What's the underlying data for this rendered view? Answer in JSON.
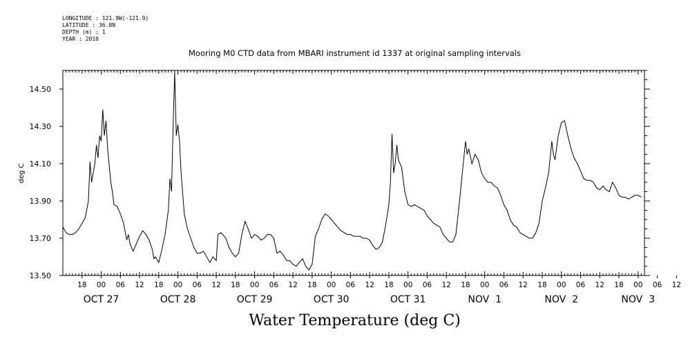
{
  "meta": {
    "longitude": "LONGITUDE : 121.9W(-121.9)",
    "latitude": "LATITUDE : 36.8N",
    "depth": "DEPTH (m) : 1",
    "year": "YEAR : 2010"
  },
  "chart_data": {
    "type": "line",
    "title": "Mooring M0 CTD data from MBARI instrument id 1337 at original sampling intervals",
    "xlabel": "Water Temperature (deg C)",
    "ylabel": "deg C",
    "ylim": [
      13.5,
      14.6
    ],
    "xlim_hours_note": "",
    "y_ticks": [
      "13.50",
      "13.70",
      "13.90",
      "14.10",
      "14.30",
      "14.50"
    ],
    "y_tick_values": [
      13.5,
      13.7,
      13.9,
      14.1,
      14.3,
      14.5
    ],
    "hour_ticks": [
      {
        "t": "2010-10-26 18:00",
        "label": "18"
      },
      {
        "t": "2010-10-27 00:00",
        "label": "00"
      },
      {
        "t": "2010-10-27 06:00",
        "label": "06"
      },
      {
        "t": "2010-10-27 12:00",
        "label": "12"
      },
      {
        "t": "2010-10-27 18:00",
        "label": "18"
      },
      {
        "t": "2010-10-28 00:00",
        "label": "00"
      },
      {
        "t": "2010-10-28 06:00",
        "label": "06"
      },
      {
        "t": "2010-10-28 12:00",
        "label": "12"
      },
      {
        "t": "2010-10-28 18:00",
        "label": "18"
      },
      {
        "t": "2010-10-29 00:00",
        "label": "00"
      },
      {
        "t": "2010-10-29 06:00",
        "label": "06"
      },
      {
        "t": "2010-10-29 12:00",
        "label": "12"
      },
      {
        "t": "2010-10-29 18:00",
        "label": "18"
      },
      {
        "t": "2010-10-30 00:00",
        "label": "00"
      },
      {
        "t": "2010-10-30 06:00",
        "label": "06"
      },
      {
        "t": "2010-10-30 12:00",
        "label": "12"
      },
      {
        "t": "2010-10-30 18:00",
        "label": "18"
      },
      {
        "t": "2010-10-31 00:00",
        "label": "00"
      },
      {
        "t": "2010-10-31 06:00",
        "label": "06"
      },
      {
        "t": "2010-10-31 12:00",
        "label": "12"
      },
      {
        "t": "2010-10-31 18:00",
        "label": "18"
      },
      {
        "t": "2010-11-01 00:00",
        "label": "00"
      },
      {
        "t": "2010-11-01 06:00",
        "label": "06"
      },
      {
        "t": "2010-11-01 12:00",
        "label": "12"
      },
      {
        "t": "2010-11-01 18:00",
        "label": "18"
      },
      {
        "t": "2010-11-02 00:00",
        "label": "00"
      },
      {
        "t": "2010-11-02 06:00",
        "label": "06"
      },
      {
        "t": "2010-11-02 12:00",
        "label": "12"
      },
      {
        "t": "2010-11-02 18:00",
        "label": "18"
      },
      {
        "t": "2010-11-03 00:00",
        "label": "00"
      },
      {
        "t": "2010-11-03 06:00",
        "label": "06"
      },
      {
        "t": "2010-11-03 12:00",
        "label": "12"
      }
    ],
    "day_labels": [
      {
        "t": "2010-10-27 00:00",
        "label": "OCT 27"
      },
      {
        "t": "2010-10-28 00:00",
        "label": "OCT 28"
      },
      {
        "t": "2010-10-29 00:00",
        "label": "OCT 29"
      },
      {
        "t": "2010-10-30 00:00",
        "label": "OCT 30"
      },
      {
        "t": "2010-10-31 00:00",
        "label": "OCT 31"
      },
      {
        "t": "2010-11-01 00:00",
        "label": "NOV  1"
      },
      {
        "t": "2010-11-02 00:00",
        "label": "NOV  2"
      },
      {
        "t": "2010-11-03 00:00",
        "label": "NOV  3"
      }
    ],
    "series": [
      {
        "points": [
          [
            "2010-10-26 12:00",
            13.76
          ],
          [
            "2010-10-26 13:00",
            13.73
          ],
          [
            "2010-10-26 14:00",
            13.72
          ],
          [
            "2010-10-26 15:00",
            13.72
          ],
          [
            "2010-10-26 16:00",
            13.73
          ],
          [
            "2010-10-26 17:00",
            13.75
          ],
          [
            "2010-10-26 18:00",
            13.78
          ],
          [
            "2010-10-26 19:00",
            13.81
          ],
          [
            "2010-10-26 20:00",
            13.9
          ],
          [
            "2010-10-26 20:30",
            14.11
          ],
          [
            "2010-10-26 21:00",
            14.0
          ],
          [
            "2010-10-26 22:00",
            14.1
          ],
          [
            "2010-10-26 22:30",
            14.2
          ],
          [
            "2010-10-26 23:00",
            14.13
          ],
          [
            "2010-10-26 23:30",
            14.25
          ],
          [
            "2010-10-27 00:00",
            14.22
          ],
          [
            "2010-10-27 00:30",
            14.39
          ],
          [
            "2010-10-27 01:00",
            14.25
          ],
          [
            "2010-10-27 01:30",
            14.33
          ],
          [
            "2010-10-27 02:00",
            14.18
          ],
          [
            "2010-10-27 03:00",
            14.0
          ],
          [
            "2010-10-27 03:30",
            13.95
          ],
          [
            "2010-10-27 04:00",
            13.88
          ],
          [
            "2010-10-27 05:00",
            13.87
          ],
          [
            "2010-10-27 06:00",
            13.83
          ],
          [
            "2010-10-27 07:00",
            13.78
          ],
          [
            "2010-10-27 08:00",
            13.69
          ],
          [
            "2010-10-27 08:30",
            13.72
          ],
          [
            "2010-10-27 09:00",
            13.67
          ],
          [
            "2010-10-27 10:00",
            13.63
          ],
          [
            "2010-10-27 11:00",
            13.67
          ],
          [
            "2010-10-27 12:00",
            13.71
          ],
          [
            "2010-10-27 13:00",
            13.74
          ],
          [
            "2010-10-27 14:00",
            13.72
          ],
          [
            "2010-10-27 15:00",
            13.69
          ],
          [
            "2010-10-27 16:00",
            13.64
          ],
          [
            "2010-10-27 16:30",
            13.59
          ],
          [
            "2010-10-27 17:00",
            13.6
          ],
          [
            "2010-10-27 18:00",
            13.57
          ],
          [
            "2010-10-27 19:00",
            13.64
          ],
          [
            "2010-10-27 20:00",
            13.72
          ],
          [
            "2010-10-27 21:00",
            13.85
          ],
          [
            "2010-10-27 21:30",
            14.02
          ],
          [
            "2010-10-27 22:00",
            13.95
          ],
          [
            "2010-10-27 22:30",
            14.3
          ],
          [
            "2010-10-27 23:00",
            14.59
          ],
          [
            "2010-10-27 23:30",
            14.25
          ],
          [
            "2010-10-28 00:00",
            14.31
          ],
          [
            "2010-10-28 00:30",
            14.22
          ],
          [
            "2010-10-28 01:00",
            14.05
          ],
          [
            "2010-10-28 02:00",
            13.83
          ],
          [
            "2010-10-28 03:00",
            13.75
          ],
          [
            "2010-10-28 04:00",
            13.7
          ],
          [
            "2010-10-28 05:00",
            13.65
          ],
          [
            "2010-10-28 06:00",
            13.62
          ],
          [
            "2010-10-28 07:00",
            13.62
          ],
          [
            "2010-10-28 08:00",
            13.63
          ],
          [
            "2010-10-28 09:00",
            13.6
          ],
          [
            "2010-10-28 10:00",
            13.57
          ],
          [
            "2010-10-28 11:00",
            13.6
          ],
          [
            "2010-10-28 12:00",
            13.58
          ],
          [
            "2010-10-28 12:30",
            13.72
          ],
          [
            "2010-10-28 13:30",
            13.73
          ],
          [
            "2010-10-28 15:00",
            13.7
          ],
          [
            "2010-10-28 16:00",
            13.65
          ],
          [
            "2010-10-28 17:00",
            13.62
          ],
          [
            "2010-10-28 18:00",
            13.6
          ],
          [
            "2010-10-28 19:00",
            13.62
          ],
          [
            "2010-10-28 20:00",
            13.72
          ],
          [
            "2010-10-28 21:00",
            13.79
          ],
          [
            "2010-10-28 22:00",
            13.75
          ],
          [
            "2010-10-28 23:00",
            13.7
          ],
          [
            "2010-10-29 00:00",
            13.72
          ],
          [
            "2010-10-29 01:00",
            13.71
          ],
          [
            "2010-10-29 02:00",
            13.69
          ],
          [
            "2010-10-29 03:00",
            13.7
          ],
          [
            "2010-10-29 04:00",
            13.72
          ],
          [
            "2010-10-29 05:00",
            13.72
          ],
          [
            "2010-10-29 06:00",
            13.7
          ],
          [
            "2010-10-29 07:00",
            13.62
          ],
          [
            "2010-10-29 08:00",
            13.63
          ],
          [
            "2010-10-29 09:00",
            13.61
          ],
          [
            "2010-10-29 10:00",
            13.58
          ],
          [
            "2010-10-29 11:00",
            13.58
          ],
          [
            "2010-10-29 12:00",
            13.56
          ],
          [
            "2010-10-29 13:00",
            13.55
          ],
          [
            "2010-10-29 14:00",
            13.57
          ],
          [
            "2010-10-29 15:00",
            13.59
          ],
          [
            "2010-10-29 16:00",
            13.55
          ],
          [
            "2010-10-29 17:00",
            13.53
          ],
          [
            "2010-10-29 18:00",
            13.56
          ],
          [
            "2010-10-29 19:00",
            13.71
          ],
          [
            "2010-10-29 20:00",
            13.75
          ],
          [
            "2010-10-29 21:00",
            13.8
          ],
          [
            "2010-10-29 22:00",
            13.83
          ],
          [
            "2010-10-29 23:00",
            13.82
          ],
          [
            "2010-10-30 00:00",
            13.8
          ],
          [
            "2010-10-30 01:00",
            13.78
          ],
          [
            "2010-10-30 02:00",
            13.76
          ],
          [
            "2010-10-30 03:00",
            13.74
          ],
          [
            "2010-10-30 04:00",
            13.73
          ],
          [
            "2010-10-30 05:00",
            13.72
          ],
          [
            "2010-10-30 06:00",
            13.72
          ],
          [
            "2010-10-30 07:00",
            13.71
          ],
          [
            "2010-10-30 08:00",
            13.71
          ],
          [
            "2010-10-30 09:00",
            13.71
          ],
          [
            "2010-10-30 10:00",
            13.7
          ],
          [
            "2010-10-30 11:00",
            13.7
          ],
          [
            "2010-10-30 12:00",
            13.69
          ],
          [
            "2010-10-30 13:00",
            13.66
          ],
          [
            "2010-10-30 14:00",
            13.64
          ],
          [
            "2010-10-30 15:00",
            13.65
          ],
          [
            "2010-10-30 16:00",
            13.68
          ],
          [
            "2010-10-30 17:00",
            13.77
          ],
          [
            "2010-10-30 18:00",
            13.88
          ],
          [
            "2010-10-30 18:30",
            14.0
          ],
          [
            "2010-10-30 19:00",
            14.26
          ],
          [
            "2010-10-30 19:30",
            14.05
          ],
          [
            "2010-10-30 20:00",
            14.1
          ],
          [
            "2010-10-30 20:30",
            14.2
          ],
          [
            "2010-10-30 21:00",
            14.12
          ],
          [
            "2010-10-30 22:00",
            14.08
          ],
          [
            "2010-10-30 23:00",
            13.95
          ],
          [
            "2010-10-31 00:00",
            13.88
          ],
          [
            "2010-10-31 01:00",
            13.87
          ],
          [
            "2010-10-31 02:00",
            13.88
          ],
          [
            "2010-10-31 03:00",
            13.87
          ],
          [
            "2010-10-31 04:00",
            13.86
          ],
          [
            "2010-10-31 05:00",
            13.85
          ],
          [
            "2010-10-31 06:00",
            13.82
          ],
          [
            "2010-10-31 07:00",
            13.8
          ],
          [
            "2010-10-31 08:00",
            13.78
          ],
          [
            "2010-10-31 09:00",
            13.77
          ],
          [
            "2010-10-31 10:00",
            13.76
          ],
          [
            "2010-10-31 11:00",
            13.72
          ],
          [
            "2010-10-31 12:00",
            13.7
          ],
          [
            "2010-10-31 13:00",
            13.68
          ],
          [
            "2010-10-31 14:00",
            13.68
          ],
          [
            "2010-10-31 15:00",
            13.72
          ],
          [
            "2010-10-31 16:00",
            13.88
          ],
          [
            "2010-10-31 17:00",
            14.05
          ],
          [
            "2010-10-31 18:00",
            14.22
          ],
          [
            "2010-10-31 18:30",
            14.15
          ],
          [
            "2010-10-31 19:00",
            14.18
          ],
          [
            "2010-10-31 20:00",
            14.1
          ],
          [
            "2010-10-31 21:00",
            14.15
          ],
          [
            "2010-10-31 22:00",
            14.12
          ],
          [
            "2010-10-31 23:00",
            14.05
          ],
          [
            "2010-11-01 00:00",
            14.02
          ],
          [
            "2010-11-01 01:00",
            14.0
          ],
          [
            "2010-11-01 02:00",
            14.0
          ],
          [
            "2010-11-01 03:00",
            13.98
          ],
          [
            "2010-11-01 04:00",
            13.97
          ],
          [
            "2010-11-01 05:00",
            13.93
          ],
          [
            "2010-11-01 06:00",
            13.88
          ],
          [
            "2010-11-01 07:00",
            13.85
          ],
          [
            "2010-11-01 08:00",
            13.8
          ],
          [
            "2010-11-01 09:00",
            13.77
          ],
          [
            "2010-11-01 10:00",
            13.76
          ],
          [
            "2010-11-01 11:00",
            13.73
          ],
          [
            "2010-11-01 12:00",
            13.72
          ],
          [
            "2010-11-01 13:00",
            13.71
          ],
          [
            "2010-11-01 14:00",
            13.7
          ],
          [
            "2010-11-01 15:00",
            13.7
          ],
          [
            "2010-11-01 16:00",
            13.73
          ],
          [
            "2010-11-01 17:00",
            13.78
          ],
          [
            "2010-11-01 18:00",
            13.9
          ],
          [
            "2010-11-01 19:00",
            13.97
          ],
          [
            "2010-11-01 20:00",
            14.05
          ],
          [
            "2010-11-01 21:00",
            14.22
          ],
          [
            "2010-11-01 21:30",
            14.15
          ],
          [
            "2010-11-01 22:00",
            14.12
          ],
          [
            "2010-11-01 23:00",
            14.25
          ],
          [
            "2010-11-02 00:00",
            14.32
          ],
          [
            "2010-11-02 01:00",
            14.33
          ],
          [
            "2010-11-02 02:00",
            14.25
          ],
          [
            "2010-11-02 03:00",
            14.18
          ],
          [
            "2010-11-02 04:00",
            14.13
          ],
          [
            "2010-11-02 05:00",
            14.1
          ],
          [
            "2010-11-02 06:00",
            14.06
          ],
          [
            "2010-11-02 07:00",
            14.02
          ],
          [
            "2010-11-02 08:00",
            14.01
          ],
          [
            "2010-11-02 09:00",
            14.01
          ],
          [
            "2010-11-02 10:00",
            14.0
          ],
          [
            "2010-11-02 11:00",
            13.97
          ],
          [
            "2010-11-02 12:00",
            13.96
          ],
          [
            "2010-11-02 13:00",
            13.98
          ],
          [
            "2010-11-02 14:00",
            13.96
          ],
          [
            "2010-11-02 15:00",
            13.95
          ],
          [
            "2010-11-02 16:00",
            14.0
          ],
          [
            "2010-11-02 17:00",
            13.97
          ],
          [
            "2010-11-02 18:00",
            13.93
          ],
          [
            "2010-11-02 19:00",
            13.92
          ],
          [
            "2010-11-02 20:00",
            13.92
          ],
          [
            "2010-11-02 21:00",
            13.91
          ],
          [
            "2010-11-02 22:00",
            13.92
          ],
          [
            "2010-11-02 23:00",
            13.93
          ],
          [
            "2010-11-03 00:00",
            13.93
          ],
          [
            "2010-11-03 01:00",
            13.92
          ]
        ]
      }
    ]
  }
}
